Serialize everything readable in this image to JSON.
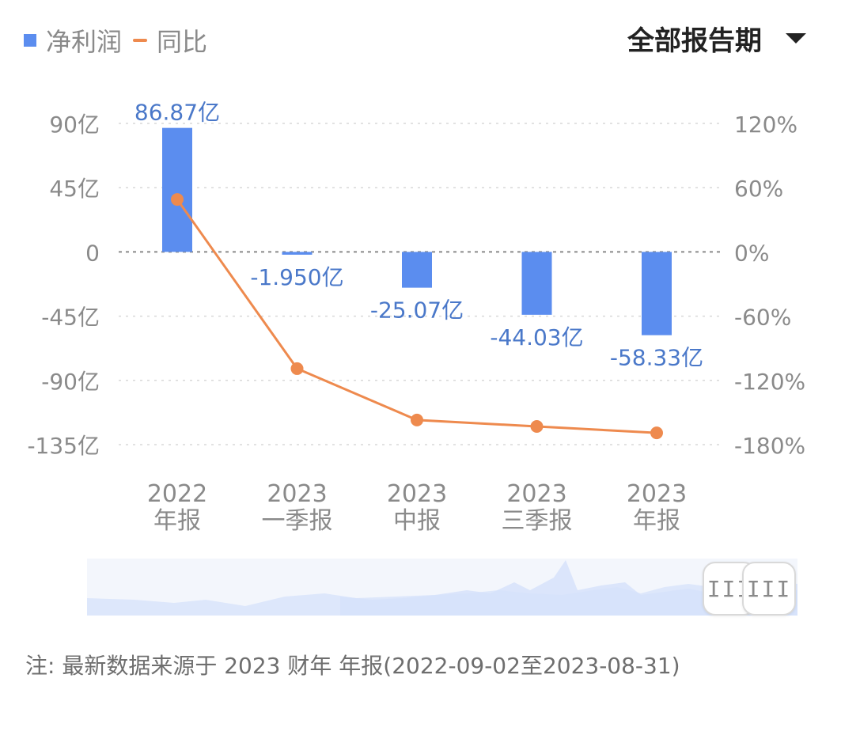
{
  "legend": {
    "bar_label": "净利润",
    "line_label": "同比"
  },
  "period_selector": {
    "label": "全部报告期"
  },
  "note": "注: 最新数据来源于 2023 财年 年报(2022-09-02至2023-08-31)",
  "scroller": {
    "handle_left_label": "III",
    "handle_right_label": "III"
  },
  "colors": {
    "bar": "#5b8def",
    "line": "#ee8a4e",
    "bar_label": "#4a78c9",
    "axis_text": "#8a8a8a",
    "grid": "#d8d8d8",
    "zero_line": "#8a8a8a",
    "scroller_fill": "#dde7fb"
  },
  "chart_data": {
    "type": "bar",
    "categories": [
      [
        "2022",
        "年报"
      ],
      [
        "2023",
        "一季报"
      ],
      [
        "2023",
        "中报"
      ],
      [
        "2023",
        "三季报"
      ],
      [
        "2023",
        "年报"
      ]
    ],
    "series": [
      {
        "name": "净利润",
        "type": "bar",
        "axis": "left",
        "values": [
          86.87,
          -1.95,
          -25.07,
          -44.03,
          -58.33
        ],
        "labels": [
          "86.87亿",
          "-1.950亿",
          "-25.07亿",
          "-44.03亿",
          "-58.33亿"
        ]
      },
      {
        "name": "同比",
        "type": "line",
        "axis": "right",
        "values": [
          49,
          -109,
          -157,
          -163,
          -169
        ]
      }
    ],
    "y_left": {
      "ticks": [
        90,
        45,
        0,
        -45,
        -90,
        -135
      ],
      "tick_labels": [
        "90亿",
        "45亿",
        "0",
        "-45亿",
        "-90亿",
        "-135亿"
      ],
      "ylim": [
        -135,
        90
      ]
    },
    "y_right": {
      "ticks": [
        120,
        60,
        0,
        -60,
        -120,
        -180
      ],
      "tick_labels": [
        "120%",
        "60%",
        "0%",
        "-60%",
        "-120%",
        "-180%"
      ],
      "ylim": [
        -180,
        120
      ]
    },
    "grid": true,
    "legend_position": "top-left"
  }
}
